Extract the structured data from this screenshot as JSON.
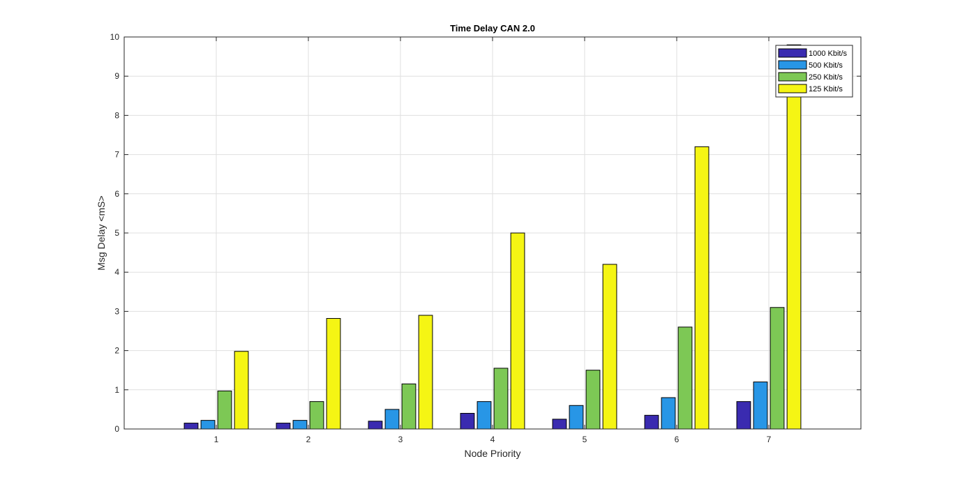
{
  "chart_data": {
    "type": "bar",
    "title": "Time Delay CAN 2.0",
    "xlabel": "Node Priority",
    "ylabel": "Msg Delay <mS>",
    "categories": [
      "1",
      "2",
      "3",
      "4",
      "5",
      "6",
      "7"
    ],
    "xlim": [
      0,
      8
    ],
    "ylim": [
      0,
      10
    ],
    "yticks": [
      0,
      1,
      2,
      3,
      4,
      5,
      6,
      7,
      8,
      9,
      10
    ],
    "grid": true,
    "legend_position": "top-right",
    "series": [
      {
        "name": "1000 Kbit/s",
        "color": "#3a2bb0",
        "values": [
          0.15,
          0.15,
          0.2,
          0.4,
          0.25,
          0.35,
          0.7
        ]
      },
      {
        "name": "500 Kbit/s",
        "color": "#2896e6",
        "values": [
          0.22,
          0.22,
          0.5,
          0.7,
          0.6,
          0.8,
          1.2
        ]
      },
      {
        "name": "250 Kbit/s",
        "color": "#7dc855",
        "values": [
          0.97,
          0.7,
          1.15,
          1.55,
          1.5,
          2.6,
          3.1
        ]
      },
      {
        "name": "125 Kbit/s",
        "color": "#f5f514",
        "values": [
          1.98,
          2.82,
          2.9,
          5.0,
          4.2,
          7.2,
          9.8
        ]
      }
    ]
  }
}
